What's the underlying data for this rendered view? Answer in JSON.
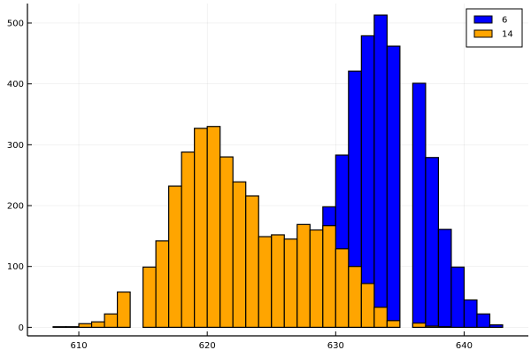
{
  "chart_data": {
    "type": "bar",
    "subtype": "overlaid-histogram",
    "bin_width": 1,
    "xlim": [
      606,
      645
    ],
    "ylim": [
      -14,
      532
    ],
    "x_ticks": [
      610,
      620,
      630,
      640
    ],
    "y_ticks": [
      0,
      100,
      200,
      300,
      400,
      500
    ],
    "x_tick_labels": [
      "610",
      "620",
      "630",
      "640"
    ],
    "y_tick_labels": [
      "0",
      "100",
      "200",
      "300",
      "400",
      "500"
    ],
    "grid": true,
    "legend_position": "top-right",
    "series": [
      {
        "name": "6",
        "color": "#0000ff",
        "bins": [
          {
            "x0": 629,
            "x1": 630,
            "count": 198
          },
          {
            "x0": 630,
            "x1": 631,
            "count": 283
          },
          {
            "x0": 631,
            "x1": 632,
            "count": 421
          },
          {
            "x0": 632,
            "x1": 633,
            "count": 479
          },
          {
            "x0": 633,
            "x1": 634,
            "count": 513
          },
          {
            "x0": 634,
            "x1": 635,
            "count": 462
          },
          {
            "x0": 635,
            "x1": 636,
            "count": 0
          },
          {
            "x0": 636,
            "x1": 637,
            "count": 401
          },
          {
            "x0": 637,
            "x1": 638,
            "count": 279
          },
          {
            "x0": 638,
            "x1": 639,
            "count": 161
          },
          {
            "x0": 639,
            "x1": 640,
            "count": 99
          },
          {
            "x0": 640,
            "x1": 641,
            "count": 45
          },
          {
            "x0": 641,
            "x1": 642,
            "count": 22
          },
          {
            "x0": 642,
            "x1": 643,
            "count": 4
          }
        ]
      },
      {
        "name": "14",
        "color": "#ffa500",
        "bins": [
          {
            "x0": 608,
            "x1": 609,
            "count": 1
          },
          {
            "x0": 609,
            "x1": 610,
            "count": 1
          },
          {
            "x0": 610,
            "x1": 611,
            "count": 6
          },
          {
            "x0": 611,
            "x1": 612,
            "count": 9
          },
          {
            "x0": 612,
            "x1": 613,
            "count": 22
          },
          {
            "x0": 613,
            "x1": 614,
            "count": 58
          },
          {
            "x0": 614,
            "x1": 615,
            "count": 0
          },
          {
            "x0": 615,
            "x1": 616,
            "count": 99
          },
          {
            "x0": 616,
            "x1": 617,
            "count": 142
          },
          {
            "x0": 617,
            "x1": 618,
            "count": 232
          },
          {
            "x0": 618,
            "x1": 619,
            "count": 288
          },
          {
            "x0": 619,
            "x1": 620,
            "count": 327
          },
          {
            "x0": 620,
            "x1": 621,
            "count": 330
          },
          {
            "x0": 621,
            "x1": 622,
            "count": 280
          },
          {
            "x0": 622,
            "x1": 623,
            "count": 239
          },
          {
            "x0": 623,
            "x1": 624,
            "count": 216
          },
          {
            "x0": 624,
            "x1": 625,
            "count": 149
          },
          {
            "x0": 625,
            "x1": 626,
            "count": 152
          },
          {
            "x0": 626,
            "x1": 627,
            "count": 145
          },
          {
            "x0": 627,
            "x1": 628,
            "count": 169
          },
          {
            "x0": 628,
            "x1": 629,
            "count": 160
          },
          {
            "x0": 629,
            "x1": 630,
            "count": 167
          },
          {
            "x0": 630,
            "x1": 631,
            "count": 129
          },
          {
            "x0": 631,
            "x1": 632,
            "count": 100
          },
          {
            "x0": 632,
            "x1": 633,
            "count": 72
          },
          {
            "x0": 633,
            "x1": 634,
            "count": 33
          },
          {
            "x0": 634,
            "x1": 635,
            "count": 11
          },
          {
            "x0": 635,
            "x1": 636,
            "count": 0
          },
          {
            "x0": 636,
            "x1": 637,
            "count": 7
          },
          {
            "x0": 637,
            "x1": 638,
            "count": 2
          },
          {
            "x0": 638,
            "x1": 639,
            "count": 1
          }
        ]
      }
    ]
  }
}
